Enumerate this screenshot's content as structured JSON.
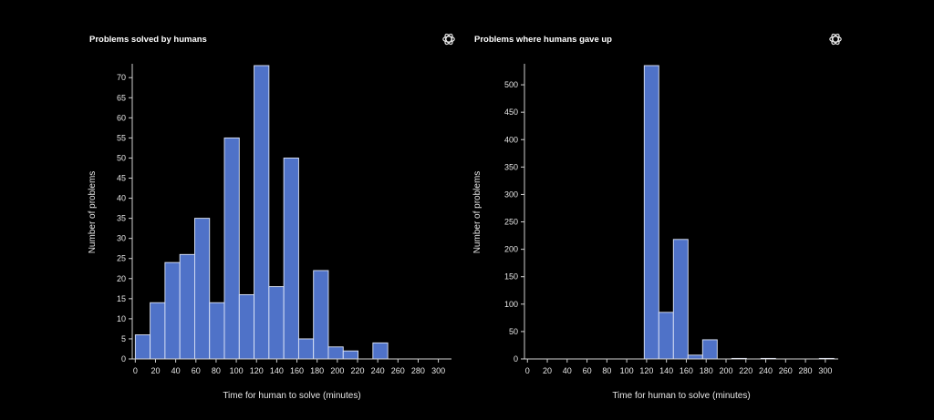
{
  "chart_data": [
    {
      "type": "bar",
      "title": "Problems solved by humans",
      "xlabel": "Time for human to solve (minutes)",
      "ylabel": "Number of problems",
      "xlim": [
        -3,
        313
      ],
      "ylim": [
        0,
        73
      ],
      "xticks": [
        0,
        20,
        40,
        60,
        80,
        100,
        120,
        140,
        160,
        180,
        200,
        220,
        240,
        260,
        280,
        300
      ],
      "yticks": [
        0,
        5,
        10,
        15,
        20,
        25,
        30,
        35,
        40,
        45,
        50,
        55,
        60,
        65,
        70
      ],
      "bin_width": 14.7,
      "bins": [
        0,
        14.7,
        29.4,
        44.1,
        58.8,
        73.5,
        88.2,
        102.9,
        117.6,
        132.3,
        147,
        161.7,
        176.4,
        191.1,
        205.8,
        220.5,
        235.2,
        249.9,
        264.6,
        279.3,
        294
      ],
      "values": [
        6,
        14,
        24,
        26,
        35,
        14,
        55,
        16,
        73,
        18,
        50,
        5,
        22,
        3,
        2,
        0,
        4,
        0,
        0,
        0,
        0
      ],
      "bar_color": "#4f72c8",
      "grid": false
    },
    {
      "type": "bar",
      "title": "Problems where humans gave up",
      "xlabel": "Time for human to solve (minutes)",
      "ylabel": "Number of problems",
      "xlim": [
        -3,
        313
      ],
      "ylim": [
        0,
        535
      ],
      "xticks": [
        0,
        20,
        40,
        60,
        80,
        100,
        120,
        140,
        160,
        180,
        200,
        220,
        240,
        260,
        280,
        300
      ],
      "yticks": [
        0,
        50,
        100,
        150,
        200,
        250,
        300,
        350,
        400,
        450,
        500
      ],
      "bin_width": 14.7,
      "bins": [
        0,
        14.7,
        29.4,
        44.1,
        58.8,
        73.5,
        88.2,
        102.9,
        117.6,
        132.3,
        147,
        161.7,
        176.4,
        191.1,
        205.8,
        220.5,
        235.2,
        249.9,
        264.6,
        279.3,
        294
      ],
      "values": [
        0,
        0,
        0,
        0,
        0,
        0,
        0,
        0,
        535,
        85,
        218,
        7,
        35,
        0,
        1,
        0,
        1,
        0,
        0,
        0,
        1
      ],
      "bar_color": "#4f72c8",
      "grid": false
    }
  ],
  "icons": {
    "logo": "openai-logo-icon"
  }
}
